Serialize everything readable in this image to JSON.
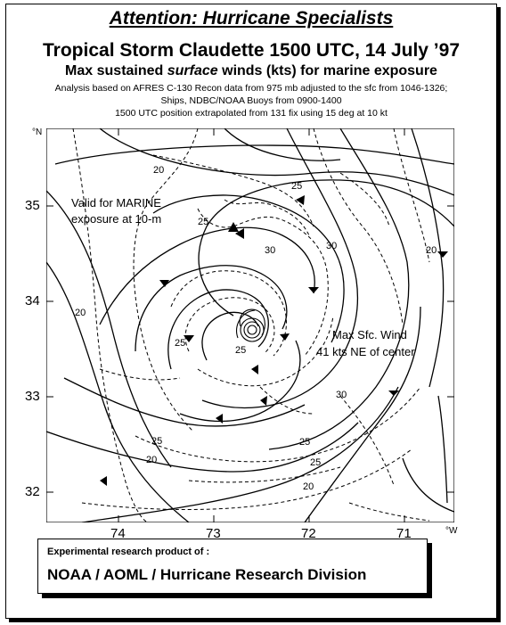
{
  "header": {
    "attention": "Attention: Hurricane Specialists",
    "title": "Tropical Storm Claudette 1500 UTC, 14 July ’97",
    "subtitle_a": "Max sustained ",
    "subtitle_b": "surface",
    "subtitle_c": " winds (kts) for marine exposure",
    "analysis_line": "Analysis based on  AFRES C-130 Recon data from  975  mb adjusted to the sfc from  1046-1326;",
    "ships_line": "Ships, NDBC/NOAA Buoys  from  0900-1400",
    "position_line": "1500 UTC position extrapolated from  131  fix using 15 deg at 10 kt"
  },
  "map": {
    "lat_unit": "°N",
    "lon_unit": "°W",
    "lat_ticks": [
      "35",
      "34",
      "33",
      "32"
    ],
    "lon_ticks": [
      "74",
      "73",
      "72",
      "71"
    ],
    "valid_note_1": "Valid for MARINE",
    "valid_note_2": "exposure at 10-m",
    "max_wind_1": "Max Sfc. Wind",
    "max_wind_2": "41 kts NE of center",
    "isotach_labels": {
      "a": "20",
      "b": "25",
      "c": "25",
      "d": "30",
      "e": "30",
      "f": "25",
      "g": "20",
      "h": "25",
      "i": "30",
      "j": "25",
      "k": "25",
      "l": "20",
      "m": "25",
      "n": "20",
      "o": "20"
    }
  },
  "footer": {
    "line1": "Experimental research product of :",
    "line2": "NOAA / AOML / Hurricane Research Division"
  }
}
